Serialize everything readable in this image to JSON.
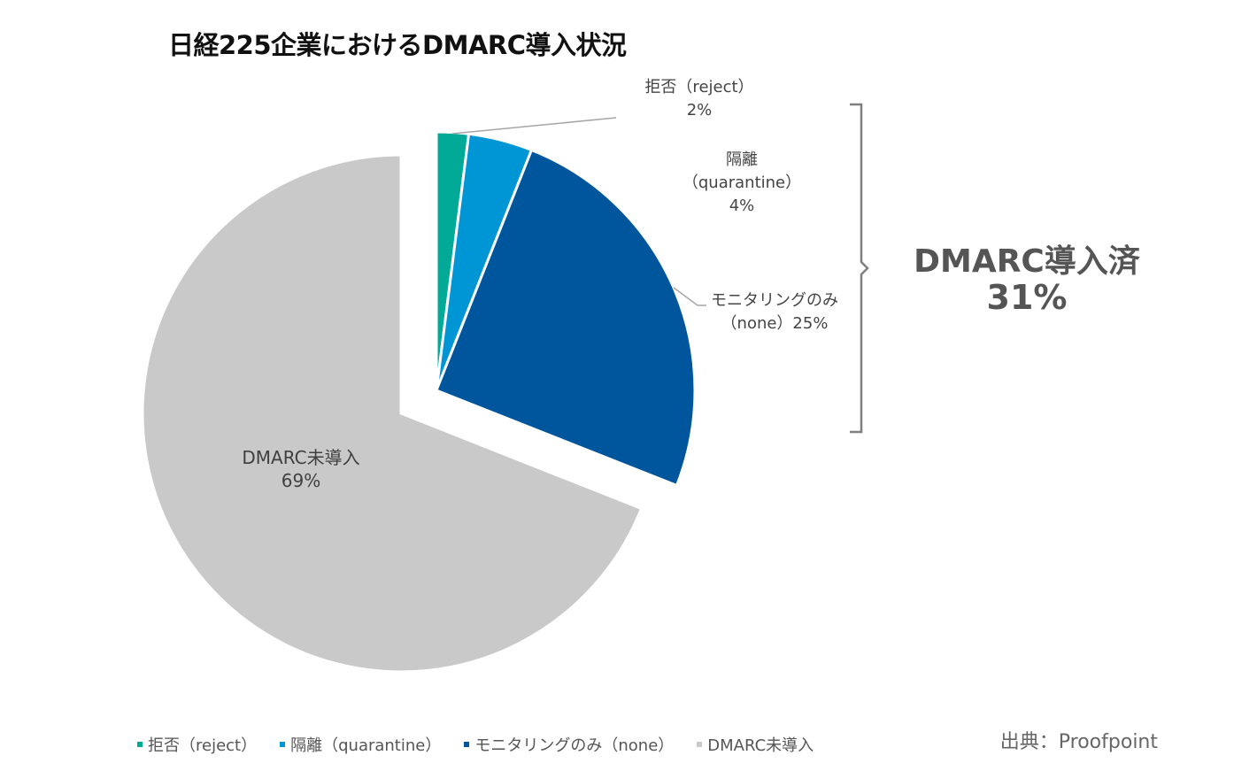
{
  "chart_data": {
    "type": "pie",
    "title": "日経225企業におけるDMARC導入状況",
    "slices": [
      {
        "name": "拒否（reject）",
        "value": 2,
        "color": "#00AA96",
        "label_lines": [
          "拒否（reject）",
          "2%"
        ],
        "exploded": true
      },
      {
        "name": "隔離（quarantine）",
        "value": 4,
        "color": "#0096D6",
        "label_lines": [
          "隔離",
          "（quarantine）",
          "4%"
        ],
        "exploded": true
      },
      {
        "name": "モニタリングのみ（none）",
        "value": 25,
        "color": "#00569C",
        "label_lines": [
          "モニタリングのみ",
          "（none）25%"
        ],
        "exploded": true
      },
      {
        "name": "DMARC未導入",
        "value": 69,
        "color": "#C8C9C8",
        "label_lines": [
          "DMARC未導入",
          "69%"
        ],
        "exploded": false
      }
    ],
    "legend": {
      "placement": "bottom",
      "entries": [
        "拒否（reject）",
        "隔離（quarantine）",
        "モニタリングのみ（none）",
        "DMARC未導入"
      ]
    },
    "annotation": {
      "label": "DMARC導入済",
      "value": "31%"
    }
  },
  "source": "出典：Proofpoint"
}
